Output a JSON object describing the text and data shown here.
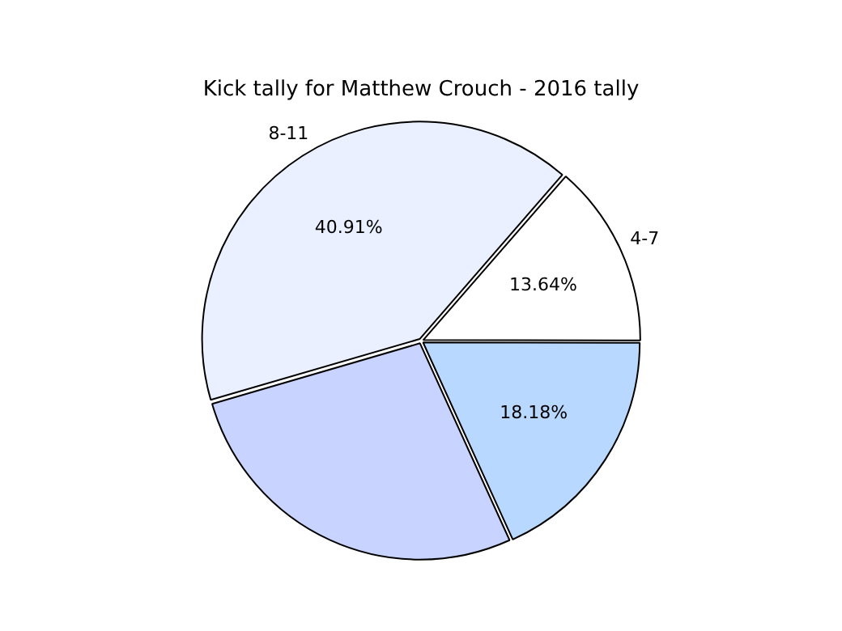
{
  "chart_data": {
    "type": "pie",
    "title": "Kick tally for Matthew Crouch - 2016 tally",
    "categories": [
      "4-7",
      null,
      null,
      "8-11"
    ],
    "values": [
      13.64,
      18.18,
      27.27,
      40.91
    ],
    "value_labels": [
      "13.64%",
      "18.18%",
      null,
      "40.91%"
    ],
    "colors": [
      "#ffffff",
      "#b8d8ff",
      "#c8d4ff",
      "#eaf0ff"
    ],
    "legend": false
  }
}
